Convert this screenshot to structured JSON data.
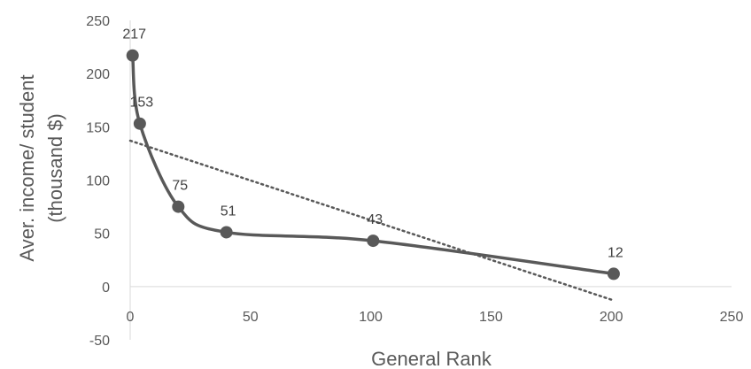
{
  "chart_data": {
    "type": "scatter",
    "title": "",
    "xlabel": "General Rank",
    "ylabel_lines": [
      "Aver. income/ student",
      "(thousand $)"
    ],
    "xlim": [
      0,
      250
    ],
    "ylim": [
      -50,
      250
    ],
    "xticks": [
      0,
      50,
      100,
      150,
      200,
      250
    ],
    "yticks": [
      -50,
      0,
      50,
      100,
      150,
      200,
      250
    ],
    "grid": false,
    "legend": "none",
    "series": [
      {
        "x": [
          1,
          4,
          20,
          40,
          101,
          201
        ],
        "y": [
          217,
          153,
          75,
          51,
          43,
          12
        ],
        "labels": [
          "217",
          "153",
          "75",
          "51",
          "43",
          "12"
        ],
        "style": "smoothed line with markers",
        "color": "#595959"
      }
    ],
    "trendline": {
      "type": "linear",
      "style": "dotted",
      "color": "#595959",
      "x": [
        0,
        201
      ],
      "y": [
        137,
        -13
      ]
    }
  }
}
